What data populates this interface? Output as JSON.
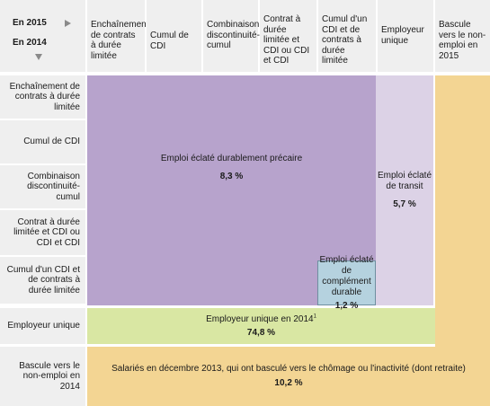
{
  "corner": {
    "label_2015": "En 2015",
    "label_2014": "En 2014",
    "arrow_right_icon": "arrow-right-icon",
    "arrow_down_icon": "arrow-down-icon"
  },
  "columns": [
    "Enchaînement de contrats à durée limitée",
    "Cumul de CDI",
    "Combinaison discontinuité-cumul",
    "Contrat à durée limitée et CDI ou CDI et CDI",
    "Cumul d'un CDI et de contrats à durée limitée",
    "Employeur unique",
    "Bascule vers le non-emploi en 2015"
  ],
  "rows": [
    "Enchaînement de contrats à durée limitée",
    "Cumul de CDI",
    "Combinaison discontinuité-cumul",
    "Contrat à durée limitée et CDI ou CDI et CDI",
    "Cumul d'un CDI et de contrats à durée limitée",
    "Employeur unique",
    "Bascule vers le non-emploi en 2014"
  ],
  "regions": {
    "precaire": {
      "label": "Emploi éclaté durablement précaire",
      "value": "8,3 %",
      "color": "#b7a3cc"
    },
    "transit": {
      "label": "Emploi éclaté de transit",
      "value": "5,7 %",
      "color": "#dcd2e6"
    },
    "complement": {
      "label": "Emploi éclaté de complément durable",
      "value": "1,2 %",
      "color": "#b5d2df"
    },
    "unique": {
      "label": "Employeur unique en 2014",
      "footnote": "1",
      "value": "74,8 %",
      "color": "#d9e7a3"
    },
    "bascule": {
      "label": "Salariés en décembre 2013, qui ont basculé vers le chômage ou l'inactivité (dont retraite)",
      "value": "10,2 %",
      "color": "#f3d593"
    }
  }
}
